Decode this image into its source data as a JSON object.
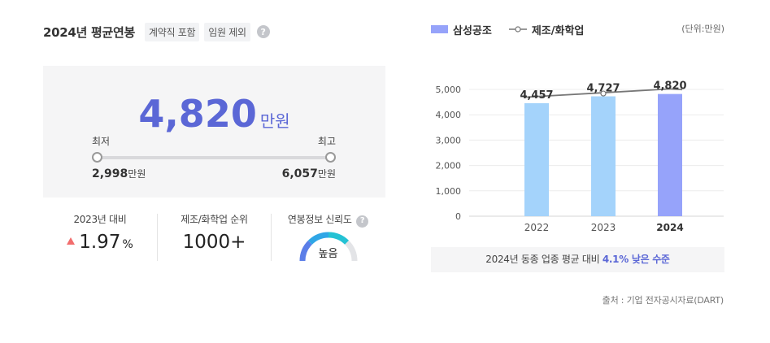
{
  "header": {
    "title": "2024년 평균연봉",
    "tags": [
      "계약직 포함",
      "임원 제외"
    ],
    "help_icon": "question-icon"
  },
  "salary": {
    "average": "4,820",
    "unit": "만원",
    "min_label": "최저",
    "max_label": "최고",
    "min_value": "2,998",
    "max_value": "6,057",
    "value_unit": "만원"
  },
  "stats": {
    "yoy_label": "2023년 대비",
    "yoy_value": "1.97",
    "yoy_unit": "%",
    "yoy_icon": "triangle-up-icon",
    "rank_label": "제조/화학업 순위",
    "rank_value": "1000+",
    "reliability_label": "연봉정보 신뢰도",
    "reliability_value": "높음"
  },
  "legend": {
    "bar_series": "삼성공조",
    "line_series": "제조/화학업",
    "unit": "(단위:만원)"
  },
  "chart_data": {
    "type": "bar",
    "categories": [
      "2022",
      "2023",
      "2024"
    ],
    "series": [
      {
        "name": "삼성공조",
        "type": "bar",
        "values": [
          4457,
          4727,
          4820
        ]
      },
      {
        "name": "제조/화학업",
        "type": "line",
        "values": [
          4720,
          4870,
          5020
        ]
      }
    ],
    "data_labels": [
      "4,457",
      "4,727",
      "4,820"
    ],
    "y_ticks": [
      "0",
      "1,000",
      "2,000",
      "3,000",
      "4,000",
      "5,000"
    ],
    "ylim": [
      0,
      5000
    ],
    "grid": true,
    "colors": {
      "bar": "#a4d3fb",
      "bar_highlight": "#96a3fa",
      "line": "#777777"
    }
  },
  "note": {
    "prefix": "2024년 동종 업종 평균 대비",
    "highlight": "4.1% 낮은 수준"
  },
  "source": "출처 : 기업 전자공시자료(DART)",
  "colors": {
    "accent": "#5b67d6",
    "up": "#f26d6d"
  }
}
